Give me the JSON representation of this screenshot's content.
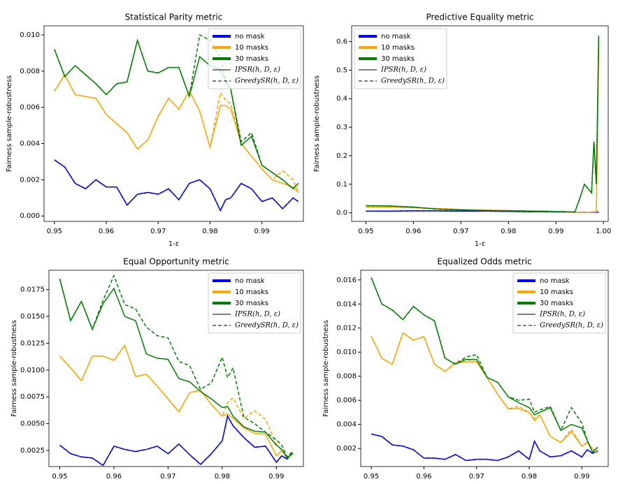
{
  "chart_data": [
    {
      "type": "line",
      "title": "Statistical Parity metric",
      "xlabel": "1-ε",
      "ylabel": "Fairness sample-robustness",
      "xlim": [
        0.948,
        0.998
      ],
      "xticks": [
        0.95,
        0.96,
        0.97,
        0.98,
        0.99
      ],
      "ylim": [
        -0.0003,
        0.0105
      ],
      "yticks": [
        {
          "value": 0,
          "label": "0.000"
        },
        0.002,
        0.004,
        0.006,
        0.008,
        {
          "value": 0.01,
          "label": "0.010"
        }
      ],
      "legend": "upper right",
      "line_styles": [
        {
          "label": "IPSR(h, D, ε)",
          "dash": "solid"
        },
        {
          "label": "GreedySR(h, D, ε)",
          "dash": "dashed"
        }
      ],
      "x": [
        0.95,
        0.952,
        0.954,
        0.956,
        0.958,
        0.96,
        0.962,
        0.964,
        0.966,
        0.968,
        0.97,
        0.972,
        0.974,
        0.976,
        0.978,
        0.98,
        0.982,
        0.983,
        0.984,
        0.986,
        0.988,
        0.99,
        0.992,
        0.994,
        0.996,
        0.997
      ],
      "series": [
        {
          "name": "no mask",
          "color": "#0000ff",
          "values": [
            0.0031,
            0.0027,
            0.0018,
            0.0015,
            0.002,
            0.0016,
            0.0016,
            0.0006,
            0.0012,
            0.0013,
            0.0012,
            0.0015,
            0.0009,
            0.0018,
            0.002,
            0.0015,
            0.0003,
            0.0009,
            0.001,
            0.0018,
            0.0015,
            0.0008,
            0.001,
            0.0004,
            0.001,
            0.0008
          ],
          "values_greedy": [
            0.0031,
            0.0027,
            0.0018,
            0.0015,
            0.002,
            0.0016,
            0.0016,
            0.0006,
            0.0012,
            0.0013,
            0.0012,
            0.0015,
            0.0009,
            0.0018,
            0.002,
            0.0015,
            0.0003,
            0.0009,
            0.001,
            0.0018,
            0.0015,
            0.0008,
            0.001,
            0.0004,
            0.001,
            0.0008
          ]
        },
        {
          "name": "10 masks",
          "color": "#ffa500",
          "values": [
            0.0069,
            0.0078,
            0.0067,
            0.0066,
            0.0065,
            0.0056,
            0.0051,
            0.0046,
            0.0037,
            0.0042,
            0.0055,
            0.0065,
            0.0059,
            0.0069,
            0.0058,
            0.0038,
            0.0061,
            0.0061,
            0.0059,
            0.004,
            0.0033,
            0.0026,
            0.002,
            0.0018,
            0.0016,
            0.0013
          ],
          "values_greedy": [
            0.0069,
            0.0078,
            0.0067,
            0.0066,
            0.0065,
            0.0056,
            0.0051,
            0.0046,
            0.0037,
            0.0042,
            0.0055,
            0.0065,
            0.0059,
            0.0069,
            0.0058,
            0.0038,
            0.0068,
            0.0064,
            0.0062,
            0.004,
            0.0033,
            0.0026,
            0.002,
            0.0025,
            0.002,
            0.0013
          ]
        },
        {
          "name": "30 masks",
          "color": "#008000",
          "values": [
            0.0092,
            0.0077,
            0.0083,
            0.0078,
            0.0073,
            0.0067,
            0.0073,
            0.0074,
            0.0097,
            0.008,
            0.0079,
            0.0082,
            0.0082,
            0.0066,
            0.0088,
            0.0083,
            0.0081,
            0.0074,
            0.007,
            0.0039,
            0.0044,
            0.0028,
            0.0024,
            0.002,
            0.0015,
            0.0018
          ],
          "values_greedy": [
            0.0092,
            0.0077,
            0.0083,
            0.0078,
            0.0073,
            0.0067,
            0.0073,
            0.0074,
            0.0097,
            0.008,
            0.0079,
            0.0082,
            0.0082,
            0.0066,
            0.01,
            0.0097,
            0.0087,
            0.0075,
            0.007,
            0.0041,
            0.0046,
            0.0028,
            0.0024,
            0.002,
            0.0015,
            0.0018
          ]
        }
      ]
    },
    {
      "type": "line",
      "title": "Predictive Equality metric",
      "xlabel": "1-ε",
      "ylabel": "Fairness sample-robustness",
      "xlim": [
        0.947,
        1.001
      ],
      "xticks": [
        0.95,
        0.96,
        0.97,
        0.98,
        0.99,
        {
          "value": 1,
          "label": "1.00"
        }
      ],
      "ylim": [
        -0.03,
        0.655
      ],
      "yticks": [
        {
          "value": 0,
          "label": "0.0"
        },
        0.1,
        0.2,
        0.3,
        0.4,
        0.5,
        0.6
      ],
      "legend": "upper left",
      "line_styles": [
        {
          "label": "IPSR(h, D, ε)",
          "dash": "solid"
        },
        {
          "label": "GreedySR(h, D, ε)",
          "dash": "dashed"
        }
      ],
      "x": [
        0.95,
        0.955,
        0.96,
        0.965,
        0.97,
        0.975,
        0.98,
        0.985,
        0.99,
        0.994,
        0.995,
        0.996,
        0.997,
        0.9975,
        0.998,
        0.9985,
        0.999
      ],
      "series": [
        {
          "name": "no mask",
          "color": "#0000ff",
          "values": [
            0.006,
            0.006,
            0.007,
            0.007,
            0.006,
            0.006,
            0.005,
            0.004,
            0.003,
            0.002,
            0.002,
            0.002,
            0.002,
            0.002,
            0.002,
            0.002,
            0.003
          ],
          "values_greedy": [
            0.006,
            0.006,
            0.007,
            0.007,
            0.006,
            0.006,
            0.005,
            0.004,
            0.003,
            0.002,
            0.002,
            0.002,
            0.002,
            0.002,
            0.002,
            0.002,
            0.003
          ]
        },
        {
          "name": "10 masks",
          "color": "#ffa500",
          "values": [
            0.02,
            0.02,
            0.018,
            0.015,
            0.012,
            0.01,
            0.008,
            0.006,
            0.004,
            0.002,
            0.002,
            0.003,
            0.002,
            0.003,
            0.003,
            0.004,
            0.58
          ],
          "values_greedy": [
            0.02,
            0.02,
            0.018,
            0.015,
            0.012,
            0.01,
            0.008,
            0.006,
            0.004,
            0.002,
            0.002,
            0.003,
            0.002,
            0.003,
            0.003,
            0.004,
            0.58
          ]
        },
        {
          "name": "30 masks",
          "color": "#008000",
          "values": [
            0.025,
            0.024,
            0.02,
            0.013,
            0.01,
            0.008,
            0.007,
            0.006,
            0.005,
            0.003,
            0.05,
            0.1,
            0.08,
            0.07,
            0.25,
            0.1,
            0.62
          ],
          "values_greedy": [
            0.025,
            0.024,
            0.02,
            0.013,
            0.01,
            0.008,
            0.007,
            0.006,
            0.005,
            0.003,
            0.05,
            0.1,
            0.08,
            0.07,
            0.25,
            0.1,
            0.62
          ]
        }
      ]
    },
    {
      "type": "line",
      "title": "Equal Opportunity metric",
      "xlabel": "1-ε",
      "ylabel": "Fairness sample-robustness",
      "xlim": [
        0.948,
        0.995
      ],
      "xticks": [
        0.95,
        0.96,
        0.97,
        0.98,
        0.99
      ],
      "ylim": [
        0.001,
        0.0193
      ],
      "yticks": [
        0.0025,
        {
          "value": 0.005,
          "label": "0.0050"
        },
        0.0075,
        {
          "value": 0.01,
          "label": "0.0100"
        },
        0.0125,
        {
          "value": 0.015,
          "label": "0.0150"
        },
        0.0175
      ],
      "legend": "upper right",
      "line_styles": [
        {
          "label": "IPSR(h, D, ε)",
          "dash": "solid"
        },
        {
          "label": "GreedySR(h, D, ε)",
          "dash": "dashed"
        }
      ],
      "x": [
        0.95,
        0.952,
        0.954,
        0.956,
        0.958,
        0.96,
        0.962,
        0.964,
        0.966,
        0.968,
        0.97,
        0.972,
        0.974,
        0.976,
        0.978,
        0.98,
        0.981,
        0.982,
        0.984,
        0.986,
        0.988,
        0.99,
        0.991,
        0.992,
        0.993
      ],
      "series": [
        {
          "name": "no mask",
          "color": "#0000ff",
          "values": [
            0.003,
            0.0022,
            0.0019,
            0.0018,
            0.0011,
            0.0029,
            0.0026,
            0.0024,
            0.0026,
            0.0029,
            0.0022,
            0.0031,
            0.0021,
            0.0012,
            0.0022,
            0.0034,
            0.0057,
            0.0048,
            0.0037,
            0.0028,
            0.0029,
            0.0014,
            0.002,
            0.0017,
            0.0022
          ],
          "values_greedy": [
            0.003,
            0.0022,
            0.0019,
            0.0018,
            0.0011,
            0.0029,
            0.0026,
            0.0024,
            0.0026,
            0.0029,
            0.0022,
            0.0031,
            0.0021,
            0.0012,
            0.0022,
            0.0034,
            0.0057,
            0.0048,
            0.0037,
            0.0028,
            0.0029,
            0.0014,
            0.002,
            0.0017,
            0.0022
          ]
        },
        {
          "name": "10 masks",
          "color": "#ffa500",
          "values": [
            0.0113,
            0.0102,
            0.009,
            0.0113,
            0.0113,
            0.0109,
            0.0123,
            0.0094,
            0.0096,
            0.0085,
            0.0073,
            0.0061,
            0.0079,
            0.0081,
            0.0068,
            0.0057,
            0.0059,
            0.0055,
            0.0046,
            0.0041,
            0.004,
            0.002,
            0.0025,
            0.0018,
            0.0021
          ],
          "values_greedy": [
            0.0113,
            0.0102,
            0.009,
            0.0113,
            0.0113,
            0.0109,
            0.0123,
            0.0094,
            0.0096,
            0.0085,
            0.0073,
            0.0061,
            0.0079,
            0.0081,
            0.0068,
            0.0057,
            0.007,
            0.0074,
            0.0055,
            0.0062,
            0.0054,
            0.0031,
            0.0025,
            0.0018,
            0.0021
          ]
        },
        {
          "name": "30 masks",
          "color": "#008000",
          "values": [
            0.0185,
            0.0146,
            0.0164,
            0.0138,
            0.0162,
            0.0176,
            0.015,
            0.0146,
            0.0115,
            0.0111,
            0.011,
            0.0092,
            0.0089,
            0.008,
            0.0073,
            0.0065,
            0.0066,
            0.0057,
            0.0047,
            0.0043,
            0.0042,
            0.003,
            0.0026,
            0.0018,
            0.0023
          ],
          "values_greedy": [
            0.0185,
            0.0146,
            0.0164,
            0.0138,
            0.0165,
            0.0188,
            0.0161,
            0.0157,
            0.014,
            0.0132,
            0.013,
            0.0108,
            0.0104,
            0.0082,
            0.0088,
            0.0112,
            0.0093,
            0.0102,
            0.0056,
            0.005,
            0.0042,
            0.0035,
            0.003,
            0.0019,
            0.0024
          ]
        }
      ]
    },
    {
      "type": "line",
      "title": "Equalized Odds metric",
      "xlabel": "1-ε",
      "ylabel": "Fairness sample-robustness",
      "xlim": [
        0.948,
        0.995
      ],
      "xticks": [
        0.95,
        0.96,
        0.97,
        0.98,
        0.99
      ],
      "ylim": [
        0.0005,
        0.0168
      ],
      "yticks": [
        0.002,
        0.004,
        0.006,
        0.008,
        {
          "value": 0.01,
          "label": "0.010"
        },
        0.012,
        0.014,
        0.016
      ],
      "legend": "upper right",
      "line_styles": [
        {
          "label": "IPSR(h, D, ε)",
          "dash": "solid"
        },
        {
          "label": "GreedySR(h, D, ε)",
          "dash": "dashed"
        }
      ],
      "x": [
        0.95,
        0.952,
        0.954,
        0.956,
        0.958,
        0.96,
        0.962,
        0.964,
        0.966,
        0.968,
        0.97,
        0.972,
        0.974,
        0.976,
        0.978,
        0.98,
        0.981,
        0.982,
        0.984,
        0.986,
        0.988,
        0.99,
        0.991,
        0.992,
        0.993
      ],
      "series": [
        {
          "name": "no mask",
          "color": "#0000ff",
          "values": [
            0.0032,
            0.003,
            0.0023,
            0.0022,
            0.0019,
            0.0012,
            0.0012,
            0.0011,
            0.0015,
            0.001,
            0.0011,
            0.0011,
            0.001,
            0.0013,
            0.0018,
            0.0011,
            0.0026,
            0.0018,
            0.0013,
            0.0014,
            0.0018,
            0.0013,
            0.0019,
            0.0016,
            0.0018
          ],
          "values_greedy": [
            0.0032,
            0.003,
            0.0023,
            0.0022,
            0.0019,
            0.0012,
            0.0012,
            0.0011,
            0.0015,
            0.001,
            0.0011,
            0.0011,
            0.001,
            0.0013,
            0.0018,
            0.0011,
            0.0026,
            0.0018,
            0.0013,
            0.0014,
            0.0018,
            0.0013,
            0.0019,
            0.0016,
            0.0018
          ]
        },
        {
          "name": "10 masks",
          "color": "#ffa500",
          "values": [
            0.0113,
            0.0095,
            0.009,
            0.0116,
            0.011,
            0.0113,
            0.009,
            0.0084,
            0.0091,
            0.0092,
            0.0092,
            0.0079,
            0.0065,
            0.0053,
            0.0053,
            0.005,
            0.0043,
            0.0048,
            0.003,
            0.0025,
            0.0034,
            0.0022,
            0.0025,
            0.002,
            0.0016
          ],
          "values_greedy": [
            0.0113,
            0.0095,
            0.009,
            0.0116,
            0.011,
            0.0113,
            0.009,
            0.0084,
            0.0092,
            0.0094,
            0.0092,
            0.0079,
            0.0065,
            0.0053,
            0.0055,
            0.005,
            0.0045,
            0.0048,
            0.003,
            0.0025,
            0.0036,
            0.0022,
            0.0025,
            0.002,
            0.0016
          ]
        },
        {
          "name": "30 masks",
          "color": "#008000",
          "values": [
            0.0162,
            0.014,
            0.0135,
            0.0127,
            0.0138,
            0.0131,
            0.0126,
            0.0095,
            0.009,
            0.0094,
            0.0094,
            0.0079,
            0.0075,
            0.0063,
            0.0058,
            0.0054,
            0.0048,
            0.005,
            0.0054,
            0.0035,
            0.004,
            0.0037,
            0.0027,
            0.0017,
            0.0021
          ],
          "values_greedy": [
            0.0162,
            0.014,
            0.0135,
            0.0127,
            0.0138,
            0.0131,
            0.0126,
            0.0095,
            0.009,
            0.0096,
            0.0098,
            0.0079,
            0.0075,
            0.0063,
            0.006,
            0.0061,
            0.005,
            0.0052,
            0.0055,
            0.0035,
            0.0054,
            0.0041,
            0.0027,
            0.0017,
            0.0021
          ]
        }
      ]
    }
  ]
}
